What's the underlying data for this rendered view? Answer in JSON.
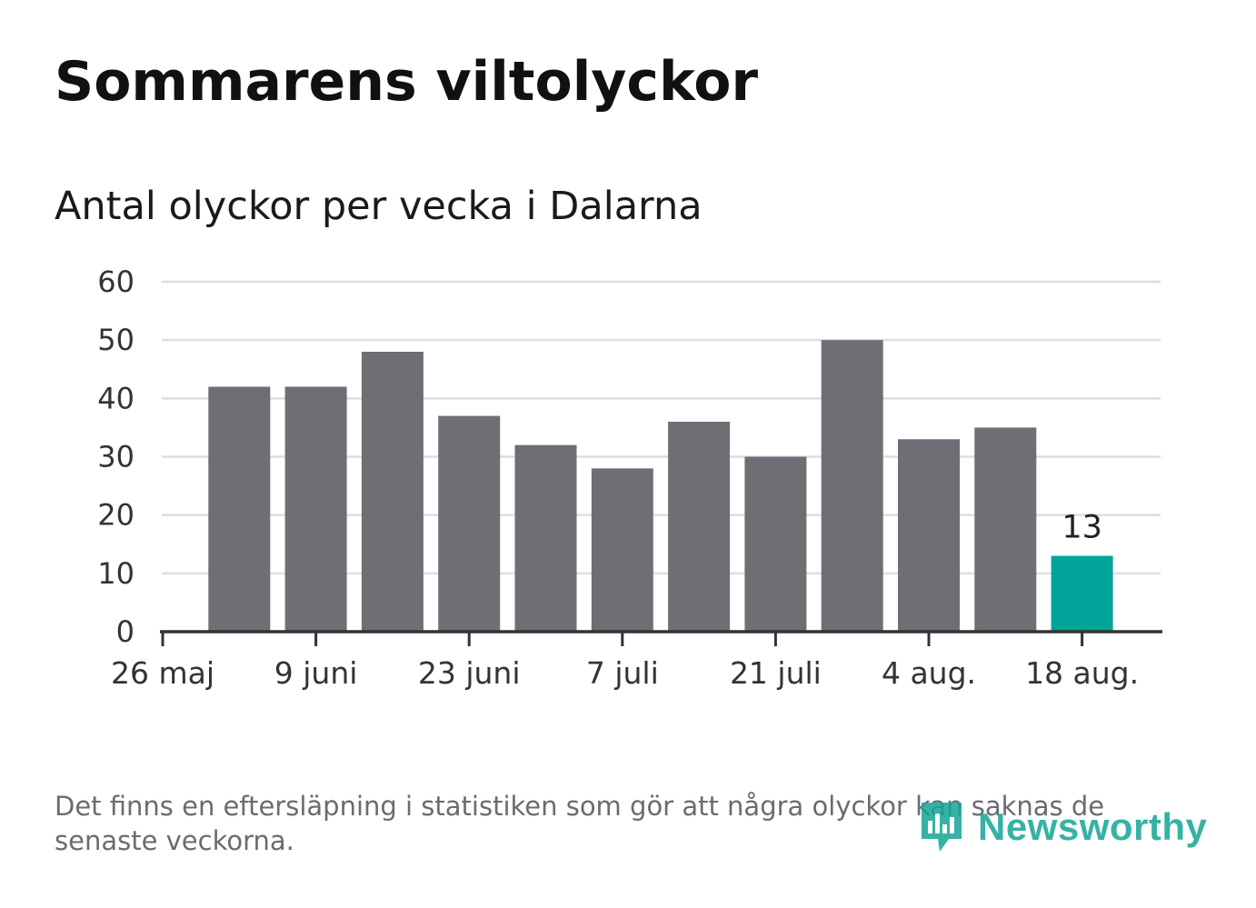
{
  "chart_data": {
    "type": "bar",
    "title": "Sommarens viltolyckor",
    "subtitle": "Antal olyckor per vecka i Dalarna",
    "categories": [
      "26 maj",
      "2 juni",
      "9 juni",
      "16 juni",
      "23 juni",
      "30 juni",
      "7 juli",
      "14 juli",
      "21 juli",
      "28 juli",
      "4 aug.",
      "11 aug.",
      "18 aug."
    ],
    "values": [
      null,
      42,
      42,
      48,
      37,
      32,
      28,
      36,
      30,
      50,
      33,
      35,
      13
    ],
    "x_tick_labels": [
      "26 maj",
      "9 juni",
      "23 juni",
      "7 juli",
      "21 juli",
      "4 aug.",
      "18 aug."
    ],
    "y_ticks": [
      0,
      10,
      20,
      30,
      40,
      50,
      60
    ],
    "ylim": [
      0,
      60
    ],
    "grid": true,
    "xlabel": "",
    "ylabel": "",
    "highlight_label": "13",
    "colors": {
      "bar": "#6f6e74",
      "highlight": "#00a499",
      "grid": "#dedede",
      "axis": "#333333",
      "tick_text": "#333333",
      "label_text": "#222222"
    }
  },
  "footnote": "Det finns en eftersläpning i statistiken som gör att några olyckor kan saknas de senaste veckorna.",
  "brand": {
    "name": "Newsworthy",
    "icon": "newsworthy-logo-icon",
    "color": "#13a596"
  }
}
